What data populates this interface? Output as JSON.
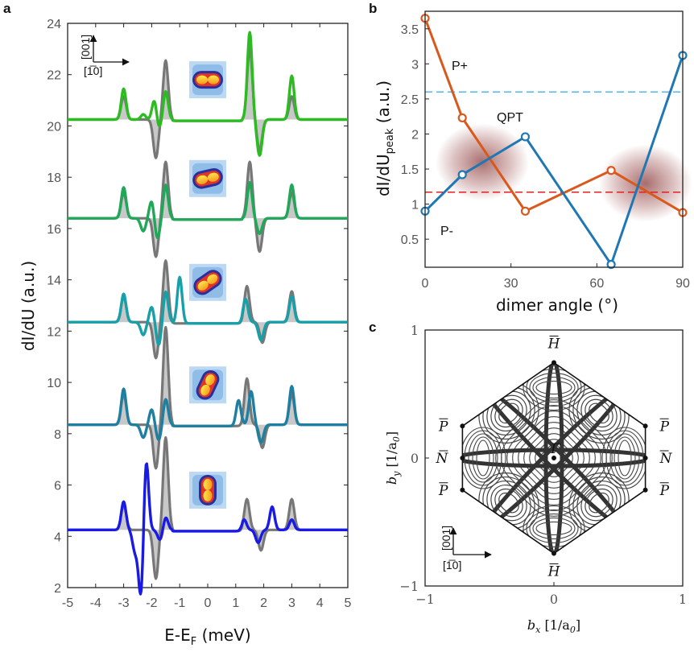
{
  "panels": {
    "a": "a",
    "b": "b",
    "c": "c"
  },
  "chart_data": [
    {
      "id": "a",
      "type": "line",
      "xlabel_main": "E-E",
      "xlabel_sub": "F",
      "xlabel_tail": " (meV)",
      "ylabel": "dI/dU (a.u.)",
      "xlim": [
        -5,
        5
      ],
      "ylim": [
        2,
        24
      ],
      "xticks": [
        "-5",
        "-4",
        "-3",
        "-2",
        "-1",
        "0",
        "1",
        "2",
        "3",
        "4",
        "5"
      ],
      "xtick_values": [
        -5,
        -4,
        -3,
        -2,
        -1,
        0,
        1,
        2,
        3,
        4,
        5
      ],
      "yticks": [
        "2",
        "4",
        "6",
        "8",
        "10",
        "12",
        "14",
        "16",
        "18",
        "20",
        "22",
        "24"
      ],
      "ytick_values": [
        2,
        4,
        6,
        8,
        10,
        12,
        14,
        16,
        18,
        20,
        22,
        24
      ],
      "orientation_label_vertical": "[001]",
      "orientation_label_horizontal": "[1̅0]",
      "colors": {
        "reference": "#777777",
        "fill": "#b5b5b5"
      },
      "spectra": [
        {
          "baseline": 4.25,
          "color": "#1a1ae6",
          "inset_angle_deg": 90,
          "reference": [
            [
              -3.0,
              1.0
            ],
            [
              -1.5,
              3.6
            ],
            [
              1.4,
              1.2
            ],
            [
              3.0,
              1.2
            ]
          ],
          "reference_dips": [
            [
              -1.85,
              -1.9
            ],
            [
              1.9,
              -0.8
            ]
          ],
          "data": [
            [
              -3.0,
              1.1
            ],
            [
              -2.6,
              -0.8
            ],
            [
              -2.2,
              2.9
            ],
            [
              -1.5,
              0.5
            ],
            [
              1.3,
              0.4
            ],
            [
              2.3,
              0.9
            ],
            [
              3.0,
              0.4
            ]
          ],
          "data_dips": [
            [
              -2.38,
              -2.7
            ],
            [
              -1.7,
              -0.4
            ],
            [
              1.8,
              -0.5
            ]
          ]
        },
        {
          "baseline": 8.35,
          "color": "#1f7fa0",
          "inset_angle_deg": 65,
          "reference": [
            [
              -3.0,
              1.2
            ],
            [
              -1.5,
              3.8
            ],
            [
              1.4,
              1.8
            ],
            [
              3.0,
              1.2
            ]
          ],
          "reference_dips": [
            [
              -1.85,
              -1.7
            ],
            [
              1.95,
              -0.9
            ]
          ],
          "data": [
            [
              -3.0,
              1.4
            ],
            [
              -2.0,
              0.6
            ],
            [
              -1.5,
              1.0
            ],
            [
              1.1,
              1.0
            ],
            [
              1.55,
              1.3
            ],
            [
              3.0,
              1.5
            ]
          ],
          "data_dips": [
            [
              -2.3,
              -0.5
            ],
            [
              -1.75,
              -0.6
            ],
            [
              1.9,
              -0.7
            ]
          ]
        },
        {
          "baseline": 12.35,
          "color": "#17a0a8",
          "inset_angle_deg": 35,
          "reference": [
            [
              -3.0,
              1.0
            ],
            [
              -1.5,
              2.4
            ],
            [
              1.4,
              1.4
            ],
            [
              3.0,
              1.2
            ]
          ],
          "reference_dips": [
            [
              -1.85,
              -1.4
            ],
            [
              1.95,
              -0.8
            ]
          ],
          "data": [
            [
              -3.0,
              1.1
            ],
            [
              -2.0,
              0.6
            ],
            [
              -1.5,
              1.2
            ],
            [
              -1.0,
              1.8
            ],
            [
              1.35,
              0.9
            ],
            [
              3.0,
              1.0
            ]
          ],
          "data_dips": [
            [
              -2.3,
              -0.5
            ],
            [
              -1.75,
              -0.9
            ],
            [
              1.9,
              -0.7
            ]
          ]
        },
        {
          "baseline": 16.4,
          "color": "#20a858",
          "inset_angle_deg": 13,
          "reference": [
            [
              -3.0,
              1.0
            ],
            [
              -1.5,
              2.2
            ],
            [
              1.5,
              2.2
            ],
            [
              3.0,
              1.0
            ]
          ],
          "reference_dips": [
            [
              -1.85,
              -1.5
            ],
            [
              1.85,
              -1.3
            ]
          ],
          "data": [
            [
              -3.0,
              1.2
            ],
            [
              -2.0,
              0.7
            ],
            [
              -1.5,
              1.3
            ],
            [
              1.5,
              1.4
            ],
            [
              3.0,
              1.3
            ]
          ],
          "data_dips": [
            [
              -2.3,
              -0.5
            ],
            [
              -1.8,
              -0.8
            ],
            [
              1.85,
              -0.6
            ]
          ]
        },
        {
          "baseline": 20.25,
          "color": "#2dbb22",
          "inset_angle_deg": 0,
          "reference": [
            [
              -3.0,
              0.9
            ],
            [
              -1.5,
              2.3
            ],
            [
              1.5,
              2.8
            ],
            [
              3.0,
              0.9
            ]
          ],
          "reference_dips": [
            [
              -1.85,
              -1.5
            ],
            [
              1.85,
              -1.2
            ]
          ],
          "data": [
            [
              -3.0,
              1.2
            ],
            [
              -2.3,
              0.2
            ],
            [
              -1.9,
              0.8
            ],
            [
              -1.5,
              1.1
            ],
            [
              1.5,
              3.4
            ],
            [
              3.0,
              1.7
            ]
          ],
          "data_dips": [
            [
              -1.75,
              -0.4
            ],
            [
              1.85,
              -1.4
            ]
          ]
        }
      ]
    },
    {
      "id": "b",
      "type": "line",
      "xlabel": "dimer angle (°)",
      "ylabel_main": "dI/dU",
      "ylabel_sub": "peak",
      "ylabel_tail": " (a.u.)",
      "xlim": [
        0,
        90
      ],
      "ylim": [
        0.1,
        3.75
      ],
      "xticks": [
        "0",
        "30",
        "60",
        "90"
      ],
      "xtick_values": [
        0,
        30,
        60,
        90
      ],
      "yticks": [
        "0.5",
        "1",
        "1.5",
        "2",
        "2.5",
        "3",
        "3.5"
      ],
      "ytick_values": [
        0.5,
        1,
        1.5,
        2,
        2.5,
        3,
        3.5
      ],
      "series": [
        {
          "name": "P+",
          "color": "#d9581c",
          "x": [
            0,
            13,
            35,
            65,
            90
          ],
          "y": [
            3.65,
            2.23,
            0.9,
            1.48,
            0.88
          ]
        },
        {
          "name": "QPT",
          "color": "#1f77b4",
          "x": [
            0,
            13,
            35,
            65,
            90
          ],
          "y": [
            0.9,
            1.42,
            1.96,
            0.14,
            3.12
          ]
        }
      ],
      "annotations": [
        "P+",
        "QPT",
        "P-"
      ],
      "hlines": [
        {
          "y": 2.6,
          "color": "#56b4e9",
          "style": "dashed"
        },
        {
          "y": 1.17,
          "color": "#e02020",
          "style": "dashed"
        }
      ],
      "shaded_regions": [
        {
          "x": 20,
          "y": 1.6,
          "color": "#9a4a4a"
        },
        {
          "x": 77,
          "y": 1.3,
          "color": "#9a4a4a"
        }
      ]
    },
    {
      "id": "c",
      "type": "scatter",
      "xlabel": "b",
      "xlabel_sub": "x",
      "xlabel_tail": " [1/a",
      "xlabel_sub2": "0",
      "xlabel_end": "]",
      "ylabel": "b",
      "ylabel_sub": "y",
      "ylabel_tail": " [1/a",
      "ylabel_sub2": "0",
      "ylabel_end": "]",
      "xlim": [
        -1,
        1
      ],
      "ylim": [
        -1,
        1
      ],
      "xticks": [
        "−1",
        "0",
        "1"
      ],
      "xtick_values": [
        -1,
        0,
        1
      ],
      "yticks": [
        "−1",
        "0",
        "1"
      ],
      "ytick_values": [
        -1,
        0,
        1
      ],
      "orientation_label_vertical": "[001]",
      "orientation_label_horizontal": "[1̅0]",
      "symmetry_points": [
        {
          "label": "H",
          "x": 0,
          "y": 0.745
        },
        {
          "label": "H",
          "x": 0,
          "y": -0.745
        },
        {
          "label": "P",
          "x": -0.71,
          "y": 0.25
        },
        {
          "label": "P",
          "x": 0.71,
          "y": 0.25
        },
        {
          "label": "N",
          "x": -0.71,
          "y": 0
        },
        {
          "label": "N",
          "x": 0.71,
          "y": 0
        },
        {
          "label": "P",
          "x": -0.71,
          "y": -0.25
        },
        {
          "label": "P",
          "x": 0.71,
          "y": -0.25
        },
        {
          "label": "Γ",
          "x": 0,
          "y": 0
        }
      ]
    }
  ]
}
